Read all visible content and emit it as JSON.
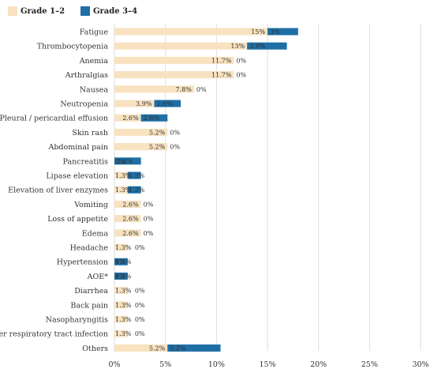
{
  "chart_data": {
    "type": "bar",
    "orientation": "horizontal",
    "stacked": true,
    "xlim": [
      0,
      30
    ],
    "x_ticks": [
      "0%",
      "5%",
      "10%",
      "15%",
      "20%",
      "25%",
      "30%"
    ],
    "grid": "vertical",
    "legend_position": "top-left",
    "colors": [
      "#f8e2c0",
      "#1f6fa6"
    ],
    "categories": [
      "Fatigue",
      "Thrombocytopenia",
      "Anemia",
      "Arthralgias",
      "Nausea",
      "Neutropenia",
      "Pleural / pericardial effusion",
      "Skin rash",
      "Abdominal pain",
      "Pancreatitis",
      "Lipase elevation",
      "Elevation of liver enzymes",
      "Vomiting",
      "Loss of appetite",
      "Edema",
      "Headache",
      "Hypertension",
      "AOE*",
      "Diarrhea",
      "Back pain",
      "Nasopharyngitis",
      "Upper respiratory tract infection",
      "Others"
    ],
    "series": [
      {
        "name": "Grade 1–2",
        "values": [
          15,
          13,
          11.7,
          11.7,
          7.8,
          3.9,
          2.6,
          5.2,
          5.2,
          0,
          1.3,
          1.3,
          2.6,
          2.6,
          2.6,
          1.3,
          0,
          0,
          1.3,
          1.3,
          1.3,
          1.3,
          5.2
        ],
        "labels": [
          "15%",
          "13%",
          "11.7%",
          "11.7%",
          "7.8%",
          "3.9%",
          "2.6%",
          "5.2%",
          "5.2%",
          "0%",
          "1.3%",
          "1.3%",
          "2.6%",
          "2.6%",
          "2.6%",
          "1.3%",
          "0%",
          "0%",
          "1.3%",
          "1.3%",
          "1.3%",
          "1.3%",
          "5.2%"
        ]
      },
      {
        "name": "Grade 3–4",
        "values": [
          3,
          3.9,
          0,
          0,
          0,
          2.6,
          2.6,
          0,
          0,
          2.6,
          1.3,
          1.3,
          0,
          0,
          0,
          0,
          1.3,
          1.3,
          0,
          0,
          0,
          0,
          5.2
        ],
        "labels": [
          "3%",
          "3.9%",
          "0%",
          "0%",
          "0%",
          "2.6%",
          "2.6%",
          "0%",
          "0%",
          "2.6%",
          "1.3%",
          "1.3%",
          "0%",
          "0%",
          "0%",
          "0%",
          "1.3%",
          "1.3%",
          "0%",
          "0%",
          "0%",
          "0%",
          "5.2%"
        ]
      }
    ]
  }
}
